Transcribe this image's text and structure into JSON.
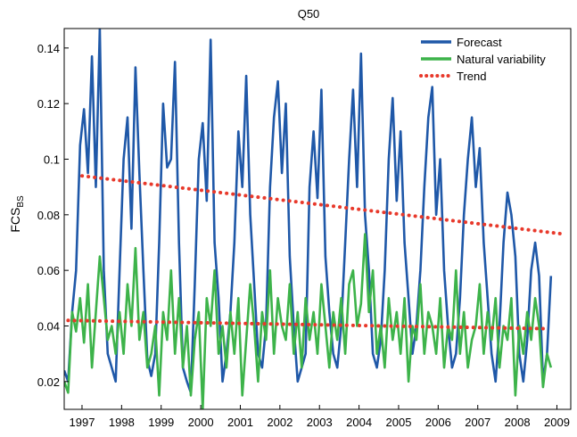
{
  "chart_data": {
    "type": "line",
    "title": "Q50",
    "ylabel": "FCS",
    "ylabel_subscript": "BS",
    "xlabel": "",
    "xlim": [
      1996.55,
      2009.35
    ],
    "ylim": [
      0.01,
      0.147
    ],
    "x_ticks": [
      1997,
      1998,
      1999,
      2000,
      2001,
      2002,
      2003,
      2004,
      2005,
      2006,
      2007,
      2008,
      2009
    ],
    "x_tick_labels": [
      "1997",
      "1998",
      "1999",
      "2000",
      "2001",
      "2002",
      "2003",
      "2004",
      "2005",
      "2006",
      "2007",
      "2008",
      "2009"
    ],
    "y_ticks": [
      0.02,
      0.04,
      0.06,
      0.08,
      0.1,
      0.12,
      0.14
    ],
    "y_tick_labels": [
      "0.02",
      "0.04",
      "0.06",
      "0.08",
      "0.1",
      "0.12",
      "0.14"
    ],
    "grid": false,
    "legend_position": "top-right",
    "series": [
      {
        "name": "Forecast",
        "color": "#1f58a8",
        "style": "solid",
        "x": [
          1996.55,
          1996.65,
          1996.75,
          1996.85,
          1996.95,
          1997.05,
          1997.15,
          1997.25,
          1997.35,
          1997.45,
          1997.55,
          1997.65,
          1997.75,
          1997.85,
          1997.95,
          1998.05,
          1998.15,
          1998.25,
          1998.35,
          1998.45,
          1998.55,
          1998.65,
          1998.75,
          1998.85,
          1998.95,
          1999.05,
          1999.15,
          1999.25,
          1999.35,
          1999.45,
          1999.55,
          1999.65,
          1999.75,
          1999.85,
          1999.95,
          2000.05,
          2000.15,
          2000.25,
          2000.35,
          2000.45,
          2000.55,
          2000.65,
          2000.75,
          2000.85,
          2000.95,
          2001.05,
          2001.15,
          2001.25,
          2001.35,
          2001.45,
          2001.55,
          2001.65,
          2001.75,
          2001.85,
          2001.95,
          2002.05,
          2002.15,
          2002.25,
          2002.35,
          2002.45,
          2002.55,
          2002.65,
          2002.75,
          2002.85,
          2002.95,
          2003.05,
          2003.15,
          2003.25,
          2003.35,
          2003.45,
          2003.55,
          2003.65,
          2003.75,
          2003.85,
          2003.95,
          2004.05,
          2004.15,
          2004.25,
          2004.35,
          2004.45,
          2004.55,
          2004.65,
          2004.75,
          2004.85,
          2004.95,
          2005.05,
          2005.15,
          2005.25,
          2005.35,
          2005.45,
          2005.55,
          2005.65,
          2005.75,
          2005.85,
          2005.95,
          2006.05,
          2006.15,
          2006.25,
          2006.35,
          2006.45,
          2006.55,
          2006.65,
          2006.75,
          2006.85,
          2006.95,
          2007.05,
          2007.15,
          2007.25,
          2007.35,
          2007.45,
          2007.55,
          2007.65,
          2007.75,
          2007.85,
          2007.95,
          2008.05,
          2008.15,
          2008.25,
          2008.35,
          2008.45,
          2008.55,
          2008.65,
          2008.75,
          2008.85
        ],
        "y": [
          0.024,
          0.02,
          0.045,
          0.06,
          0.105,
          0.118,
          0.095,
          0.137,
          0.09,
          0.147,
          0.06,
          0.03,
          0.025,
          0.02,
          0.06,
          0.1,
          0.115,
          0.075,
          0.133,
          0.095,
          0.06,
          0.028,
          0.022,
          0.03,
          0.07,
          0.12,
          0.097,
          0.1,
          0.135,
          0.07,
          0.025,
          0.02,
          0.016,
          0.055,
          0.1,
          0.113,
          0.085,
          0.143,
          0.07,
          0.05,
          0.02,
          0.03,
          0.045,
          0.07,
          0.11,
          0.09,
          0.13,
          0.08,
          0.055,
          0.03,
          0.025,
          0.04,
          0.09,
          0.115,
          0.128,
          0.095,
          0.12,
          0.065,
          0.04,
          0.02,
          0.025,
          0.03,
          0.09,
          0.11,
          0.086,
          0.125,
          0.065,
          0.045,
          0.03,
          0.025,
          0.04,
          0.07,
          0.1,
          0.125,
          0.09,
          0.138,
          0.08,
          0.06,
          0.03,
          0.025,
          0.035,
          0.06,
          0.1,
          0.122,
          0.085,
          0.11,
          0.07,
          0.05,
          0.03,
          0.04,
          0.06,
          0.09,
          0.115,
          0.126,
          0.08,
          0.1,
          0.06,
          0.04,
          0.025,
          0.03,
          0.05,
          0.08,
          0.1,
          0.115,
          0.09,
          0.104,
          0.07,
          0.05,
          0.03,
          0.02,
          0.04,
          0.07,
          0.088,
          0.08,
          0.065,
          0.03,
          0.02,
          0.035,
          0.06,
          0.07,
          0.058,
          0.02,
          0.03,
          0.058
        ]
      },
      {
        "name": "Natural variability",
        "color": "#3db34a",
        "style": "solid",
        "x": [
          1996.55,
          1996.65,
          1996.75,
          1996.85,
          1996.95,
          1997.05,
          1997.15,
          1997.25,
          1997.35,
          1997.45,
          1997.55,
          1997.65,
          1997.75,
          1997.85,
          1997.95,
          1998.05,
          1998.15,
          1998.25,
          1998.35,
          1998.45,
          1998.55,
          1998.65,
          1998.75,
          1998.85,
          1998.95,
          1999.05,
          1999.15,
          1999.25,
          1999.35,
          1999.45,
          1999.55,
          1999.65,
          1999.75,
          1999.85,
          1999.95,
          2000.05,
          2000.15,
          2000.25,
          2000.35,
          2000.45,
          2000.55,
          2000.65,
          2000.75,
          2000.85,
          2000.95,
          2001.05,
          2001.15,
          2001.25,
          2001.35,
          2001.45,
          2001.55,
          2001.65,
          2001.75,
          2001.85,
          2001.95,
          2002.05,
          2002.15,
          2002.25,
          2002.35,
          2002.45,
          2002.55,
          2002.65,
          2002.75,
          2002.85,
          2002.95,
          2003.05,
          2003.15,
          2003.25,
          2003.35,
          2003.45,
          2003.55,
          2003.65,
          2003.75,
          2003.85,
          2003.95,
          2004.05,
          2004.15,
          2004.25,
          2004.35,
          2004.45,
          2004.55,
          2004.65,
          2004.75,
          2004.85,
          2004.95,
          2005.05,
          2005.15,
          2005.25,
          2005.35,
          2005.45,
          2005.55,
          2005.65,
          2005.75,
          2005.85,
          2005.95,
          2006.05,
          2006.15,
          2006.25,
          2006.35,
          2006.45,
          2006.55,
          2006.65,
          2006.75,
          2006.85,
          2006.95,
          2007.05,
          2007.15,
          2007.25,
          2007.35,
          2007.45,
          2007.55,
          2007.65,
          2007.75,
          2007.85,
          2007.95,
          2008.05,
          2008.15,
          2008.25,
          2008.35,
          2008.45,
          2008.55,
          2008.65,
          2008.75,
          2008.85
        ],
        "y": [
          0.02,
          0.016,
          0.045,
          0.038,
          0.05,
          0.034,
          0.055,
          0.025,
          0.045,
          0.065,
          0.05,
          0.035,
          0.04,
          0.03,
          0.045,
          0.03,
          0.055,
          0.04,
          0.068,
          0.035,
          0.045,
          0.025,
          0.03,
          0.04,
          0.015,
          0.045,
          0.035,
          0.06,
          0.03,
          0.05,
          0.025,
          0.04,
          0.015,
          0.035,
          0.045,
          0.01,
          0.05,
          0.04,
          0.06,
          0.03,
          0.04,
          0.025,
          0.045,
          0.03,
          0.05,
          0.015,
          0.035,
          0.055,
          0.04,
          0.02,
          0.045,
          0.035,
          0.06,
          0.03,
          0.05,
          0.04,
          0.035,
          0.055,
          0.03,
          0.045,
          0.025,
          0.05,
          0.035,
          0.045,
          0.03,
          0.055,
          0.04,
          0.025,
          0.045,
          0.035,
          0.05,
          0.03,
          0.055,
          0.06,
          0.04,
          0.048,
          0.073,
          0.045,
          0.06,
          0.03,
          0.04,
          0.025,
          0.05,
          0.035,
          0.045,
          0.03,
          0.05,
          0.02,
          0.04,
          0.035,
          0.055,
          0.03,
          0.045,
          0.04,
          0.03,
          0.05,
          0.025,
          0.04,
          0.035,
          0.06,
          0.03,
          0.045,
          0.025,
          0.035,
          0.04,
          0.055,
          0.03,
          0.045,
          0.035,
          0.05,
          0.025,
          0.04,
          0.035,
          0.05,
          0.015,
          0.04,
          0.03,
          0.045,
          0.035,
          0.05,
          0.04,
          0.018,
          0.03,
          0.025
        ]
      },
      {
        "name": "Trend",
        "color": "#e8392b",
        "style": "dotted",
        "segments": [
          {
            "x": [
              1997.0,
              2009.2
            ],
            "y": [
              0.094,
              0.073
            ]
          },
          {
            "x": [
              1996.65,
              2008.75
            ],
            "y": [
              0.042,
              0.039
            ]
          }
        ]
      }
    ]
  }
}
